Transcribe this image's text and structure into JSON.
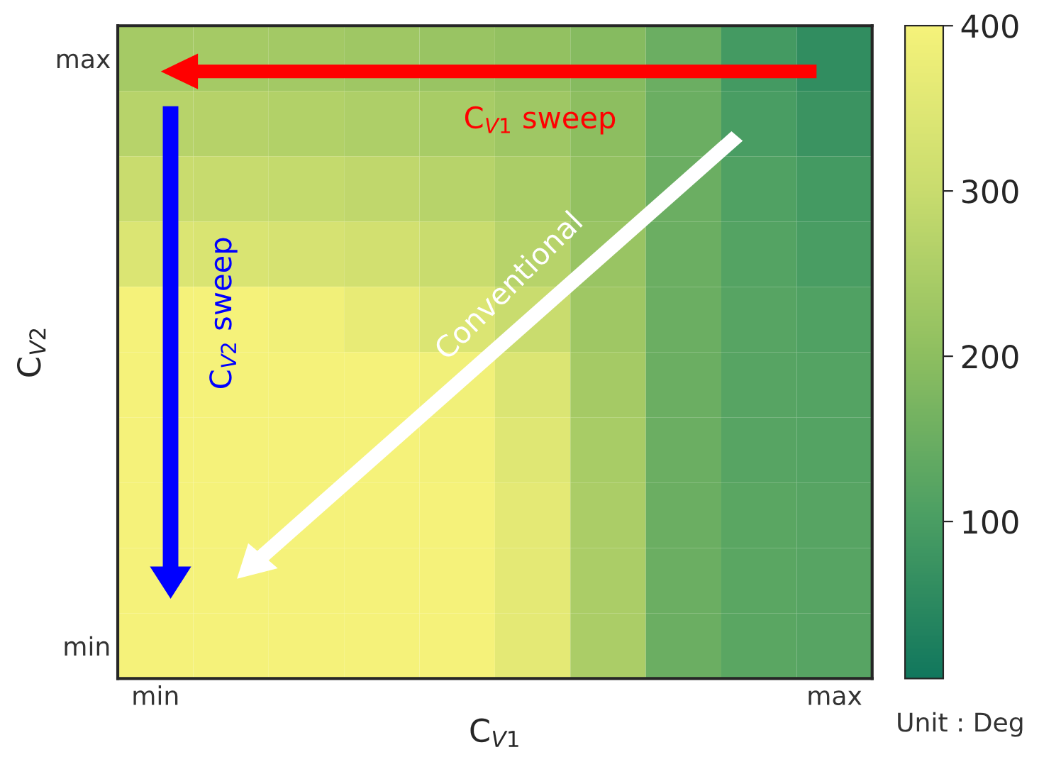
{
  "chart_data": {
    "type": "heatmap",
    "xlabel": "C$_{V1}$",
    "ylabel": "C$_{V2}$",
    "categories": [
      "min",
      null,
      null,
      null,
      null,
      null,
      null,
      null,
      null,
      "max"
    ],
    "y_categories": [
      "max",
      null,
      null,
      null,
      null,
      null,
      null,
      null,
      null,
      "min"
    ],
    "cells": [
      [
        240,
        240,
        235,
        230,
        220,
        210,
        190,
        150,
        90,
        60
      ],
      [
        270,
        268,
        262,
        255,
        245,
        230,
        200,
        150,
        100,
        75
      ],
      [
        300,
        298,
        292,
        285,
        270,
        250,
        210,
        150,
        110,
        90
      ],
      [
        340,
        338,
        330,
        320,
        300,
        270,
        220,
        150,
        115,
        100
      ],
      [
        400,
        400,
        390,
        370,
        340,
        300,
        230,
        150,
        120,
        110
      ],
      [
        400,
        400,
        400,
        400,
        390,
        340,
        240,
        150,
        120,
        115
      ],
      [
        400,
        400,
        400,
        400,
        395,
        350,
        245,
        150,
        120,
        115
      ],
      [
        400,
        400,
        400,
        400,
        400,
        360,
        250,
        150,
        125,
        120
      ],
      [
        400,
        400,
        400,
        400,
        400,
        360,
        250,
        150,
        125,
        120
      ],
      [
        400,
        400,
        400,
        400,
        400,
        360,
        250,
        150,
        125,
        120
      ]
    ],
    "clim": [
      5,
      400
    ],
    "cticks": [
      100,
      200,
      300,
      400
    ],
    "annotations": [
      "C$_{V1}$ sweep",
      "C$_{V2}$ sweep",
      "Conventional",
      "Unit : Deg"
    ]
  }
}
